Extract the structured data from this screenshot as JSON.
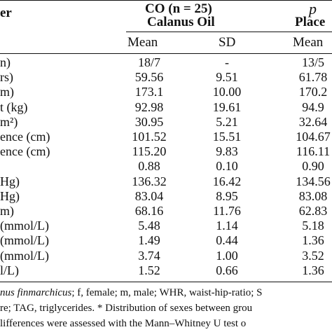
{
  "header": {
    "param_fragment": "er",
    "co_group": "CO (n = 25)",
    "co_name": "Calanus Oil",
    "pl_group_fragment": "p",
    "pl_name_fragment": "Place",
    "col_mean": "Mean",
    "col_sd": "SD"
  },
  "rows": [
    {
      "label": "n)",
      "co_mean": "18/7",
      "co_sd": "-",
      "pl_mean": "13/5"
    },
    {
      "label": "rs)",
      "co_mean": "59.56",
      "co_sd": "9.51",
      "pl_mean": "61.78"
    },
    {
      "label": "m)",
      "co_mean": "173.1",
      "co_sd": "10.00",
      "pl_mean": "170.2"
    },
    {
      "label": "t (kg)",
      "co_mean": "92.98",
      "co_sd": "19.61",
      "pl_mean": "94.9"
    },
    {
      "label": "m²)",
      "co_mean": "30.95",
      "co_sd": "5.21",
      "pl_mean": "32.64"
    },
    {
      "label": "ence (cm)",
      "co_mean": "101.52",
      "co_sd": "15.51",
      "pl_mean": "104.67"
    },
    {
      "label": "ence (cm)",
      "co_mean": "115.20",
      "co_sd": "9.83",
      "pl_mean": "116.11"
    },
    {
      "label": "",
      "co_mean": "0.88",
      "co_sd": "0.10",
      "pl_mean": "0.90"
    },
    {
      "label": "Hg)",
      "co_mean": "136.32",
      "co_sd": "16.42",
      "pl_mean": "134.56"
    },
    {
      "label": "Hg)",
      "co_mean": "83.04",
      "co_sd": "8.95",
      "pl_mean": "83.08"
    },
    {
      "label": "m)",
      "co_mean": "68.16",
      "co_sd": "11.76",
      "pl_mean": "62.83"
    },
    {
      "label": "(mmol/L)",
      "co_mean": "5.48",
      "co_sd": "1.14",
      "pl_mean": "5.18"
    },
    {
      "label": "(mmol/L)",
      "co_mean": "1.49",
      "co_sd": "0.44",
      "pl_mean": "1.36"
    },
    {
      "label": "(mmol/L)",
      "co_mean": "3.74",
      "co_sd": "1.00",
      "pl_mean": "3.52"
    },
    {
      "label": "l/L)",
      "co_mean": "1.52",
      "co_sd": "0.66",
      "pl_mean": "1.36"
    }
  ],
  "footnotes": [
    {
      "italic": "nus finmarchicus",
      "rest": "; f, female; m, male; WHR, waist-hip-ratio; S"
    },
    {
      "italic": "",
      "rest": "re; TAG, triglycerides. * Distribution of sexes between grou"
    },
    {
      "italic": "",
      "rest": "lifferences were assessed with the Mann–Whitney U test o"
    }
  ]
}
